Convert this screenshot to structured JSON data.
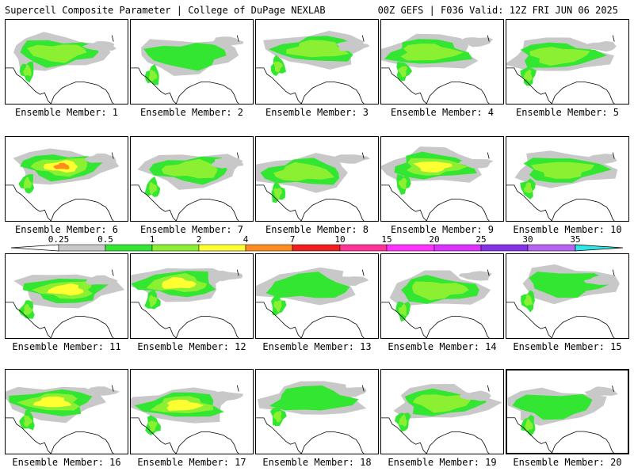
{
  "header": {
    "title_left": "Supercell Composite Parameter | College of DuPage NEXLAB",
    "title_right": "00Z GEFS | F036 Valid: 12Z FRI JUN 06 2025"
  },
  "colorbar": {
    "labels": [
      "0.25",
      "0.5",
      "1",
      "2",
      "4",
      "7",
      "10",
      "15",
      "20",
      "25",
      "30",
      "35"
    ],
    "colors": [
      "#c8c8c8",
      "#32e632",
      "#8cf032",
      "#ffff32",
      "#ff8c1e",
      "#f01e1e",
      "#ff3296",
      "#ff32ff",
      "#dc32ff",
      "#8232e6",
      "#b464f0",
      "#32e6e6"
    ]
  },
  "members": [
    {
      "label": "Ensemble Member: 1",
      "intensity": 2
    },
    {
      "label": "Ensemble Member: 2",
      "intensity": 1
    },
    {
      "label": "Ensemble Member: 3",
      "intensity": 2
    },
    {
      "label": "Ensemble Member: 4",
      "intensity": 2
    },
    {
      "label": "Ensemble Member: 5",
      "intensity": 2
    },
    {
      "label": "Ensemble Member: 6",
      "intensity": 4
    },
    {
      "label": "Ensemble Member: 7",
      "intensity": 2
    },
    {
      "label": "Ensemble Member: 8",
      "intensity": 2
    },
    {
      "label": "Ensemble Member: 9",
      "intensity": 3
    },
    {
      "label": "Ensemble Member: 10",
      "intensity": 2
    },
    {
      "label": "Ensemble Member: 11",
      "intensity": 3
    },
    {
      "label": "Ensemble Member: 12",
      "intensity": 3
    },
    {
      "label": "Ensemble Member: 13",
      "intensity": 1
    },
    {
      "label": "Ensemble Member: 14",
      "intensity": 2
    },
    {
      "label": "Ensemble Member: 15",
      "intensity": 1
    },
    {
      "label": "Ensemble Member: 16",
      "intensity": 3
    },
    {
      "label": "Ensemble Member: 17",
      "intensity": 3
    },
    {
      "label": "Ensemble Member: 18",
      "intensity": 1
    },
    {
      "label": "Ensemble Member: 19",
      "intensity": 2
    },
    {
      "label": "Ensemble Member: 20",
      "intensity": 1
    }
  ],
  "selected_member": 20
}
